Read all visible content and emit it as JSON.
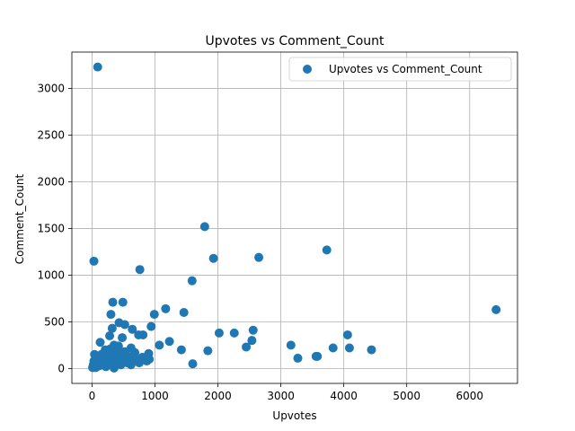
{
  "chart_data": {
    "type": "scatter",
    "title": "Upvotes vs Comment_Count",
    "xlabel": "Upvotes",
    "ylabel": "Comment_Count",
    "xlim": [
      -320,
      6760
    ],
    "ylim": [
      -160,
      3390
    ],
    "xticks": [
      0,
      1000,
      2000,
      3000,
      4000,
      5000,
      6000
    ],
    "yticks": [
      0,
      500,
      1000,
      1500,
      2000,
      2500,
      3000
    ],
    "grid": true,
    "legend": {
      "placement": "top-right",
      "entries": [
        "Upvotes vs Comment_Count"
      ]
    },
    "color": "#1f77b4",
    "series": [
      {
        "name": "Upvotes vs Comment_Count",
        "points": [
          [
            90,
            3230
          ],
          [
            30,
            1150
          ],
          [
            1790,
            1520
          ],
          [
            1930,
            1180
          ],
          [
            2650,
            1190
          ],
          [
            3730,
            1270
          ],
          [
            760,
            1060
          ],
          [
            1590,
            940
          ],
          [
            330,
            710
          ],
          [
            490,
            710
          ],
          [
            1170,
            640
          ],
          [
            6420,
            630
          ],
          [
            990,
            580
          ],
          [
            1460,
            600
          ],
          [
            300,
            580
          ],
          [
            430,
            490
          ],
          [
            520,
            470
          ],
          [
            940,
            450
          ],
          [
            320,
            430
          ],
          [
            640,
            420
          ],
          [
            2560,
            410
          ],
          [
            2020,
            380
          ],
          [
            2260,
            380
          ],
          [
            4060,
            360
          ],
          [
            810,
            360
          ],
          [
            740,
            360
          ],
          [
            280,
            350
          ],
          [
            480,
            330
          ],
          [
            1230,
            290
          ],
          [
            2540,
            300
          ],
          [
            1070,
            250
          ],
          [
            3160,
            250
          ],
          [
            2450,
            230
          ],
          [
            3830,
            220
          ],
          [
            4090,
            220
          ],
          [
            1420,
            200
          ],
          [
            1840,
            190
          ],
          [
            4440,
            200
          ],
          [
            3560,
            130
          ],
          [
            3580,
            130
          ],
          [
            3270,
            110
          ],
          [
            1600,
            50
          ],
          [
            130,
            280
          ],
          [
            620,
            220
          ],
          [
            350,
            250
          ],
          [
            420,
            240
          ],
          [
            210,
            200
          ],
          [
            380,
            190
          ],
          [
            520,
            180
          ],
          [
            680,
            170
          ],
          [
            900,
            160
          ],
          [
            260,
            160
          ],
          [
            150,
            150
          ],
          [
            40,
            150
          ],
          [
            330,
            140
          ],
          [
            450,
            130
          ],
          [
            800,
            120
          ],
          [
            570,
            110
          ],
          [
            700,
            100
          ],
          [
            910,
            100
          ],
          [
            870,
            80
          ],
          [
            260,
            90
          ],
          [
            100,
            100
          ],
          [
            180,
            80
          ],
          [
            30,
            80
          ],
          [
            400,
            70
          ],
          [
            560,
            60
          ],
          [
            750,
            60
          ],
          [
            460,
            40
          ],
          [
            620,
            40
          ],
          [
            340,
            30
          ],
          [
            120,
            30
          ],
          [
            220,
            20
          ],
          [
            60,
            10
          ],
          [
            10,
            10
          ],
          [
            350,
            5
          ],
          [
            150,
            50
          ],
          [
            250,
            110
          ],
          [
            480,
            90
          ],
          [
            660,
            140
          ],
          [
            200,
            130
          ],
          [
            90,
            60
          ],
          [
            310,
            60
          ],
          [
            540,
            150
          ],
          [
            20,
            40
          ],
          [
            70,
            120
          ],
          [
            420,
            160
          ],
          [
            290,
            210
          ],
          [
            500,
            120
          ],
          [
            380,
            100
          ]
        ]
      }
    ]
  }
}
